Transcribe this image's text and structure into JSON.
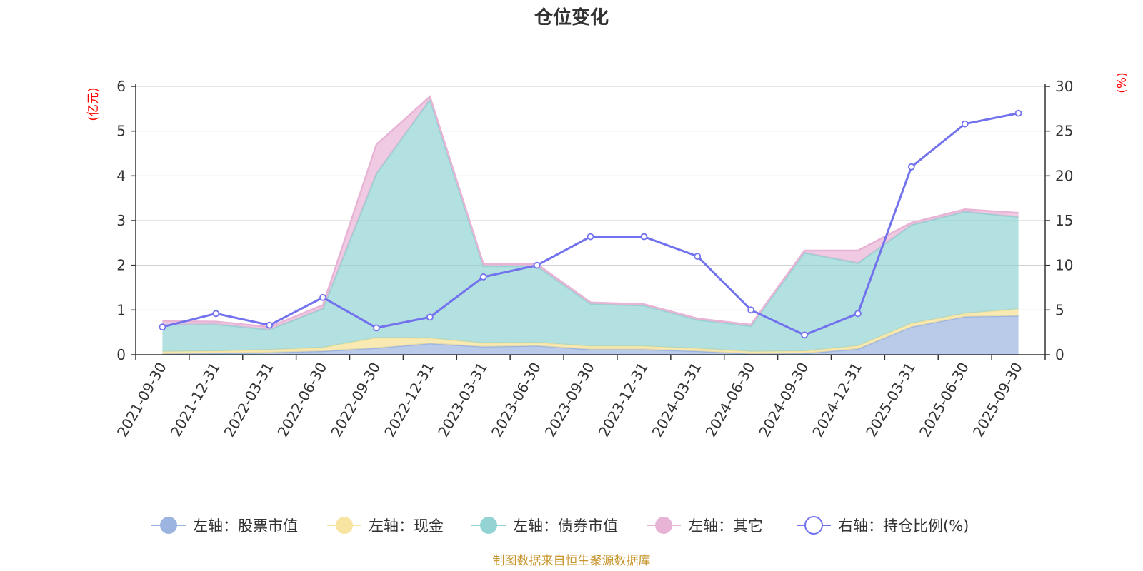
{
  "chart_data": {
    "type": "area",
    "title": "仓位变化",
    "categories": [
      "2021-09-30",
      "2021-12-31",
      "2022-03-31",
      "2022-06-30",
      "2022-09-30",
      "2022-12-31",
      "2023-03-31",
      "2023-06-30",
      "2023-09-30",
      "2023-12-31",
      "2024-03-31",
      "2024-06-30",
      "2024-09-30",
      "2024-12-31",
      "2025-03-31",
      "2025-06-30",
      "2025-09-30"
    ],
    "left_axis": {
      "unit": "(亿元)",
      "ylim": [
        0,
        6
      ],
      "ticks": [
        "0",
        "1",
        "2",
        "3",
        "4",
        "5",
        "6"
      ]
    },
    "right_axis": {
      "unit": "(%)",
      "ylim": [
        0,
        30
      ],
      "ticks": [
        "0",
        "5",
        "10",
        "15",
        "20",
        "25",
        "30"
      ]
    },
    "grid": true,
    "legend_position": "bottom",
    "series": [
      {
        "name": "左轴：股票市值",
        "axis": "left",
        "stacked": true,
        "color": "#9bb5e0",
        "values": [
          0.02,
          0.03,
          0.05,
          0.08,
          0.15,
          0.25,
          0.18,
          0.2,
          0.12,
          0.12,
          0.08,
          0.02,
          0.03,
          0.13,
          0.62,
          0.85,
          0.87
        ]
      },
      {
        "name": "左轴：现金",
        "axis": "left",
        "stacked": true,
        "color": "#f7e4a0",
        "values": [
          0.05,
          0.05,
          0.06,
          0.08,
          0.23,
          0.12,
          0.08,
          0.07,
          0.07,
          0.07,
          0.06,
          0.05,
          0.05,
          0.07,
          0.08,
          0.07,
          0.15
        ]
      },
      {
        "name": "左轴：债券市值",
        "axis": "left",
        "stacked": true,
        "color": "#93d3d3",
        "values": [
          0.6,
          0.6,
          0.45,
          0.87,
          3.67,
          5.33,
          1.72,
          1.71,
          0.95,
          0.91,
          0.64,
          0.57,
          2.2,
          1.85,
          2.2,
          2.28,
          2.06
        ]
      },
      {
        "name": "左轴：其它",
        "axis": "left",
        "stacked": true,
        "color": "#e8b4d6",
        "values": [
          0.08,
          0.06,
          0.06,
          0.08,
          0.65,
          0.07,
          0.05,
          0.05,
          0.03,
          0.03,
          0.03,
          0.03,
          0.05,
          0.28,
          0.05,
          0.05,
          0.09
        ]
      },
      {
        "name": "右轴：持仓比例(%)",
        "axis": "right",
        "type": "line",
        "color": "#7272ee",
        "values": [
          3.1,
          4.6,
          3.3,
          6.4,
          3.0,
          4.2,
          8.7,
          10.0,
          13.2,
          13.2,
          11.0,
          5.0,
          2.2,
          4.6,
          21.0,
          25.8,
          27.0
        ]
      }
    ],
    "source_note": "制图数据来自恒生聚源数据库"
  }
}
